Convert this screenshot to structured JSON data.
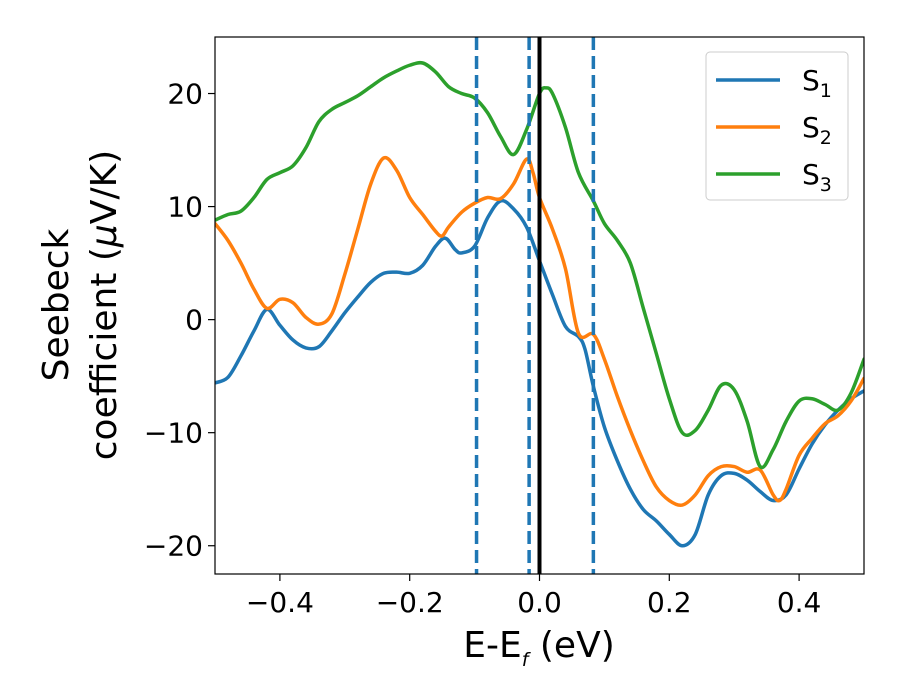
{
  "chart_data": {
    "type": "line",
    "xlabel": {
      "main": "E-E",
      "sub": "f",
      "unit": " (eV)"
    },
    "ylabel": {
      "line1": "Seebeck",
      "line2_main": "coefficient  (",
      "line2_mu": "μ",
      "line2_rest": "V/K)"
    },
    "xlim": [
      -0.5,
      0.5
    ],
    "ylim": [
      -22.5,
      25
    ],
    "xticks": [
      -0.4,
      -0.2,
      0.0,
      0.2,
      0.4
    ],
    "xtick_labels": [
      "−0.4",
      "−0.2",
      "0.0",
      "0.2",
      "0.4"
    ],
    "yticks": [
      -20,
      -10,
      0,
      10,
      20
    ],
    "ytick_labels": [
      "−20",
      "−10",
      "0",
      "10",
      "20"
    ],
    "grid": false,
    "legend_position": "top-right",
    "vlines": [
      {
        "x": 0.0,
        "style": "solid",
        "color": "#000000"
      },
      {
        "x": -0.097,
        "style": "dashed",
        "color": "#1f77b4"
      },
      {
        "x": -0.016,
        "style": "dashed",
        "color": "#1f77b4"
      },
      {
        "x": 0.083,
        "style": "dashed",
        "color": "#1f77b4"
      }
    ],
    "series": [
      {
        "name": "S",
        "sub": "1",
        "color": "#1f77b4",
        "points": [
          [
            -0.5,
            -5.6
          ],
          [
            -0.48,
            -5.1
          ],
          [
            -0.46,
            -3.2
          ],
          [
            -0.44,
            -1.0
          ],
          [
            -0.42,
            0.9
          ],
          [
            -0.4,
            -0.5
          ],
          [
            -0.38,
            -1.8
          ],
          [
            -0.36,
            -2.5
          ],
          [
            -0.34,
            -2.4
          ],
          [
            -0.32,
            -1.0
          ],
          [
            -0.3,
            0.6
          ],
          [
            -0.28,
            2.0
          ],
          [
            -0.26,
            3.3
          ],
          [
            -0.24,
            4.1
          ],
          [
            -0.22,
            4.2
          ],
          [
            -0.2,
            4.1
          ],
          [
            -0.18,
            4.8
          ],
          [
            -0.16,
            6.5
          ],
          [
            -0.145,
            7.2
          ],
          [
            -0.13,
            6.2
          ],
          [
            -0.12,
            5.9
          ],
          [
            -0.1,
            6.5
          ],
          [
            -0.08,
            9.0
          ],
          [
            -0.06,
            10.5
          ],
          [
            -0.04,
            9.8
          ],
          [
            -0.02,
            8.2
          ],
          [
            0.0,
            5.2
          ],
          [
            0.02,
            2.2
          ],
          [
            0.04,
            -0.6
          ],
          [
            0.06,
            -1.5
          ],
          [
            0.07,
            -2.6
          ],
          [
            0.083,
            -5.9
          ],
          [
            0.1,
            -9.5
          ],
          [
            0.12,
            -12.5
          ],
          [
            0.14,
            -15.0
          ],
          [
            0.16,
            -16.8
          ],
          [
            0.18,
            -17.8
          ],
          [
            0.2,
            -19.0
          ],
          [
            0.22,
            -20.0
          ],
          [
            0.24,
            -19.0
          ],
          [
            0.26,
            -15.5
          ],
          [
            0.28,
            -13.8
          ],
          [
            0.3,
            -13.6
          ],
          [
            0.32,
            -14.2
          ],
          [
            0.34,
            -15.2
          ],
          [
            0.36,
            -16.0
          ],
          [
            0.38,
            -15.5
          ],
          [
            0.4,
            -13.2
          ],
          [
            0.42,
            -11.0
          ],
          [
            0.44,
            -9.3
          ],
          [
            0.46,
            -8.0
          ],
          [
            0.48,
            -7.0
          ],
          [
            0.5,
            -6.3
          ]
        ]
      },
      {
        "name": "S",
        "sub": "2",
        "color": "#ff7f0e",
        "points": [
          [
            -0.5,
            8.5
          ],
          [
            -0.48,
            7.0
          ],
          [
            -0.46,
            5.0
          ],
          [
            -0.44,
            2.7
          ],
          [
            -0.42,
            1.0
          ],
          [
            -0.4,
            1.8
          ],
          [
            -0.38,
            1.5
          ],
          [
            -0.36,
            0.2
          ],
          [
            -0.34,
            -0.4
          ],
          [
            -0.32,
            0.5
          ],
          [
            -0.3,
            4.0
          ],
          [
            -0.28,
            8.0
          ],
          [
            -0.26,
            12.0
          ],
          [
            -0.24,
            14.3
          ],
          [
            -0.22,
            13.2
          ],
          [
            -0.2,
            10.8
          ],
          [
            -0.18,
            9.3
          ],
          [
            -0.16,
            7.8
          ],
          [
            -0.15,
            7.4
          ],
          [
            -0.14,
            8.2
          ],
          [
            -0.12,
            9.5
          ],
          [
            -0.1,
            10.3
          ],
          [
            -0.08,
            10.8
          ],
          [
            -0.06,
            10.7
          ],
          [
            -0.04,
            12.0
          ],
          [
            -0.02,
            14.2
          ],
          [
            -0.01,
            13.0
          ],
          [
            0.0,
            10.8
          ],
          [
            0.02,
            8.0
          ],
          [
            0.04,
            4.5
          ],
          [
            0.06,
            -1.2
          ],
          [
            0.083,
            -1.3
          ],
          [
            0.1,
            -3.5
          ],
          [
            0.12,
            -6.8
          ],
          [
            0.14,
            -9.8
          ],
          [
            0.16,
            -12.5
          ],
          [
            0.18,
            -14.8
          ],
          [
            0.2,
            -16.0
          ],
          [
            0.22,
            -16.4
          ],
          [
            0.24,
            -15.5
          ],
          [
            0.26,
            -13.8
          ],
          [
            0.28,
            -13.0
          ],
          [
            0.3,
            -13.0
          ],
          [
            0.32,
            -13.5
          ],
          [
            0.34,
            -13.3
          ],
          [
            0.36,
            -15.5
          ],
          [
            0.37,
            -16.0
          ],
          [
            0.38,
            -15.0
          ],
          [
            0.4,
            -12.0
          ],
          [
            0.42,
            -10.5
          ],
          [
            0.44,
            -9.2
          ],
          [
            0.46,
            -8.5
          ],
          [
            0.48,
            -7.2
          ],
          [
            0.5,
            -5.2
          ]
        ]
      },
      {
        "name": "S",
        "sub": "3",
        "color": "#2ca02c",
        "points": [
          [
            -0.5,
            8.8
          ],
          [
            -0.48,
            9.3
          ],
          [
            -0.46,
            9.6
          ],
          [
            -0.44,
            10.8
          ],
          [
            -0.42,
            12.4
          ],
          [
            -0.4,
            13.0
          ],
          [
            -0.38,
            13.6
          ],
          [
            -0.36,
            15.2
          ],
          [
            -0.34,
            17.5
          ],
          [
            -0.32,
            18.6
          ],
          [
            -0.3,
            19.2
          ],
          [
            -0.28,
            19.8
          ],
          [
            -0.26,
            20.6
          ],
          [
            -0.24,
            21.4
          ],
          [
            -0.22,
            22.0
          ],
          [
            -0.2,
            22.5
          ],
          [
            -0.18,
            22.7
          ],
          [
            -0.16,
            21.9
          ],
          [
            -0.14,
            20.6
          ],
          [
            -0.12,
            20.0
          ],
          [
            -0.1,
            19.6
          ],
          [
            -0.08,
            18.3
          ],
          [
            -0.06,
            16.2
          ],
          [
            -0.04,
            14.6
          ],
          [
            -0.02,
            16.8
          ],
          [
            0.0,
            20.0
          ],
          [
            0.01,
            20.5
          ],
          [
            0.02,
            20.0
          ],
          [
            0.04,
            17.0
          ],
          [
            0.06,
            13.0
          ],
          [
            0.083,
            10.5
          ],
          [
            0.1,
            8.5
          ],
          [
            0.12,
            7.0
          ],
          [
            0.14,
            5.0
          ],
          [
            0.16,
            1.0
          ],
          [
            0.18,
            -3.0
          ],
          [
            0.2,
            -7.0
          ],
          [
            0.22,
            -10.0
          ],
          [
            0.24,
            -9.8
          ],
          [
            0.26,
            -8.0
          ],
          [
            0.28,
            -5.8
          ],
          [
            0.3,
            -6.2
          ],
          [
            0.32,
            -9.0
          ],
          [
            0.34,
            -13.0
          ],
          [
            0.36,
            -11.5
          ],
          [
            0.38,
            -9.0
          ],
          [
            0.4,
            -7.2
          ],
          [
            0.42,
            -7.0
          ],
          [
            0.44,
            -7.5
          ],
          [
            0.46,
            -8.0
          ],
          [
            0.48,
            -6.5
          ],
          [
            0.5,
            -3.5
          ]
        ]
      }
    ]
  }
}
